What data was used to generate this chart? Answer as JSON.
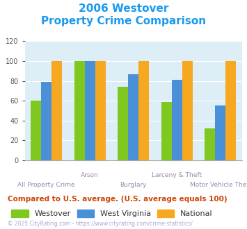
{
  "title_line1": "2006 Westover",
  "title_line2": "Property Crime Comparison",
  "title_color": "#1a9aef",
  "categories": [
    "All Property Crime",
    "Arson",
    "Burglary",
    "Larceny & Theft",
    "Motor Vehicle Theft"
  ],
  "westover": [
    60,
    100,
    74,
    59,
    32
  ],
  "west_virginia": [
    79,
    100,
    87,
    81,
    55
  ],
  "national": [
    100,
    100,
    100,
    100,
    100
  ],
  "color_westover": "#7ec820",
  "color_wv": "#4a90d9",
  "color_national": "#f5a820",
  "ylim": [
    0,
    120
  ],
  "yticks": [
    0,
    20,
    40,
    60,
    80,
    100,
    120
  ],
  "bg_color": "#ddeef7",
  "xlabel_color": "#9988aa",
  "subtitle_note": "Compared to U.S. average. (U.S. average equals 100)",
  "subtitle_color": "#cc4400",
  "copyright": "© 2025 CityRating.com - https://www.cityrating.com/crime-statistics/",
  "copyright_color": "#aaaacc",
  "legend_labels": [
    "Westover",
    "West Virginia",
    "National"
  ],
  "legend_colors": [
    "#7ec820",
    "#4a90d9",
    "#f5a820"
  ],
  "tick_labels_top": [
    "",
    "Arson",
    "",
    "Larceny & Theft",
    ""
  ],
  "tick_labels_bottom": [
    "All Property Crime",
    "",
    "Burglary",
    "",
    "Motor Vehicle Theft"
  ]
}
